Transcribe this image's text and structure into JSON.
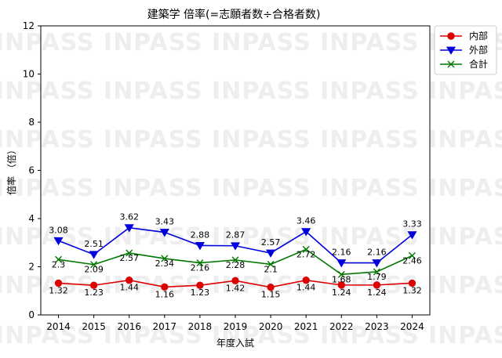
{
  "watermark_text": "INPASS INPASS INPASS INPASS INPASS INPASS INPASS",
  "chart_data": {
    "type": "line",
    "title": "建築学 倍率(=志願者数÷合格者数)",
    "xlabel": "年度入試",
    "ylabel": "倍率 （倍）",
    "categories": [
      "2014",
      "2015",
      "2016",
      "2017",
      "2018",
      "2019",
      "2020",
      "2021",
      "2022",
      "2023",
      "2024"
    ],
    "ylim": [
      0,
      12
    ],
    "yticks": [
      "0",
      "2",
      "4",
      "6",
      "8",
      "10",
      "12"
    ],
    "legend_position": "top-right outside",
    "grid": false,
    "series": [
      {
        "name": "内部",
        "color": "#dd0000",
        "marker": "circle",
        "values": [
          1.32,
          1.23,
          1.44,
          1.16,
          1.23,
          1.42,
          1.15,
          1.44,
          1.24,
          1.24,
          1.32
        ],
        "labels": [
          "1.32",
          "1.23",
          "1.44",
          "1.16",
          "1.23",
          "1.42",
          "1.15",
          "1.44",
          "1.24",
          "1.24",
          "1.32"
        ]
      },
      {
        "name": "外部",
        "color": "#0000dd",
        "marker": "triangle-down",
        "values": [
          3.08,
          2.51,
          3.62,
          3.43,
          2.88,
          2.87,
          2.57,
          3.46,
          2.16,
          2.16,
          3.33
        ],
        "labels": [
          "3.08",
          "2.51",
          "3.62",
          "3.43",
          "2.88",
          "2.87",
          "2.57",
          "3.46",
          "2.16",
          "2.16",
          "3.33"
        ]
      },
      {
        "name": "合計",
        "color": "#007700",
        "marker": "x",
        "values": [
          2.3,
          2.09,
          2.57,
          2.34,
          2.16,
          2.28,
          2.1,
          2.72,
          1.68,
          1.79,
          2.46
        ],
        "labels": [
          "2.3",
          "2.09",
          "2.57",
          "2.34",
          "2.16",
          "2.28",
          "2.1",
          "2.72",
          "1.68",
          "1.79",
          "2.46"
        ]
      }
    ]
  }
}
